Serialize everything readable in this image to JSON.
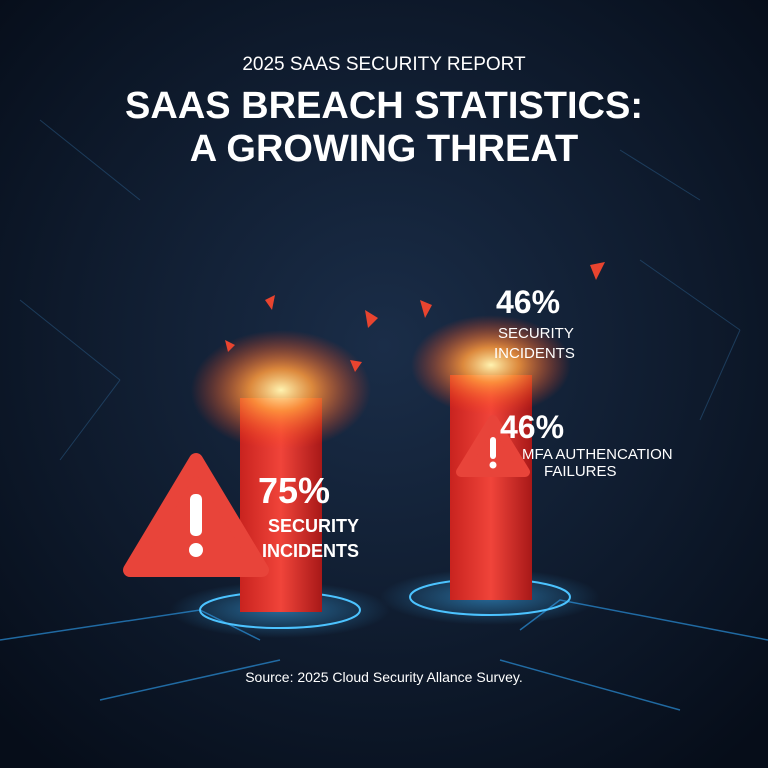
{
  "header": {
    "kicker": "2025 SAAS SECURITY REPORT",
    "title": [
      "SAAS BREACH STATISTICS:",
      "A GROWING THREAT"
    ]
  },
  "stats": [
    {
      "figure": "75%",
      "label": [
        "SECURITY",
        "INCIDENTS"
      ]
    },
    {
      "figure": "46%",
      "label": [
        "SECURITY",
        "INCIDENTS"
      ]
    },
    {
      "figure": "46%",
      "label": [
        "MFA AUTHENCATION",
        "FAILURES"
      ]
    }
  ],
  "source": "Source: 2025 Cloud Security Allance Survey."
}
